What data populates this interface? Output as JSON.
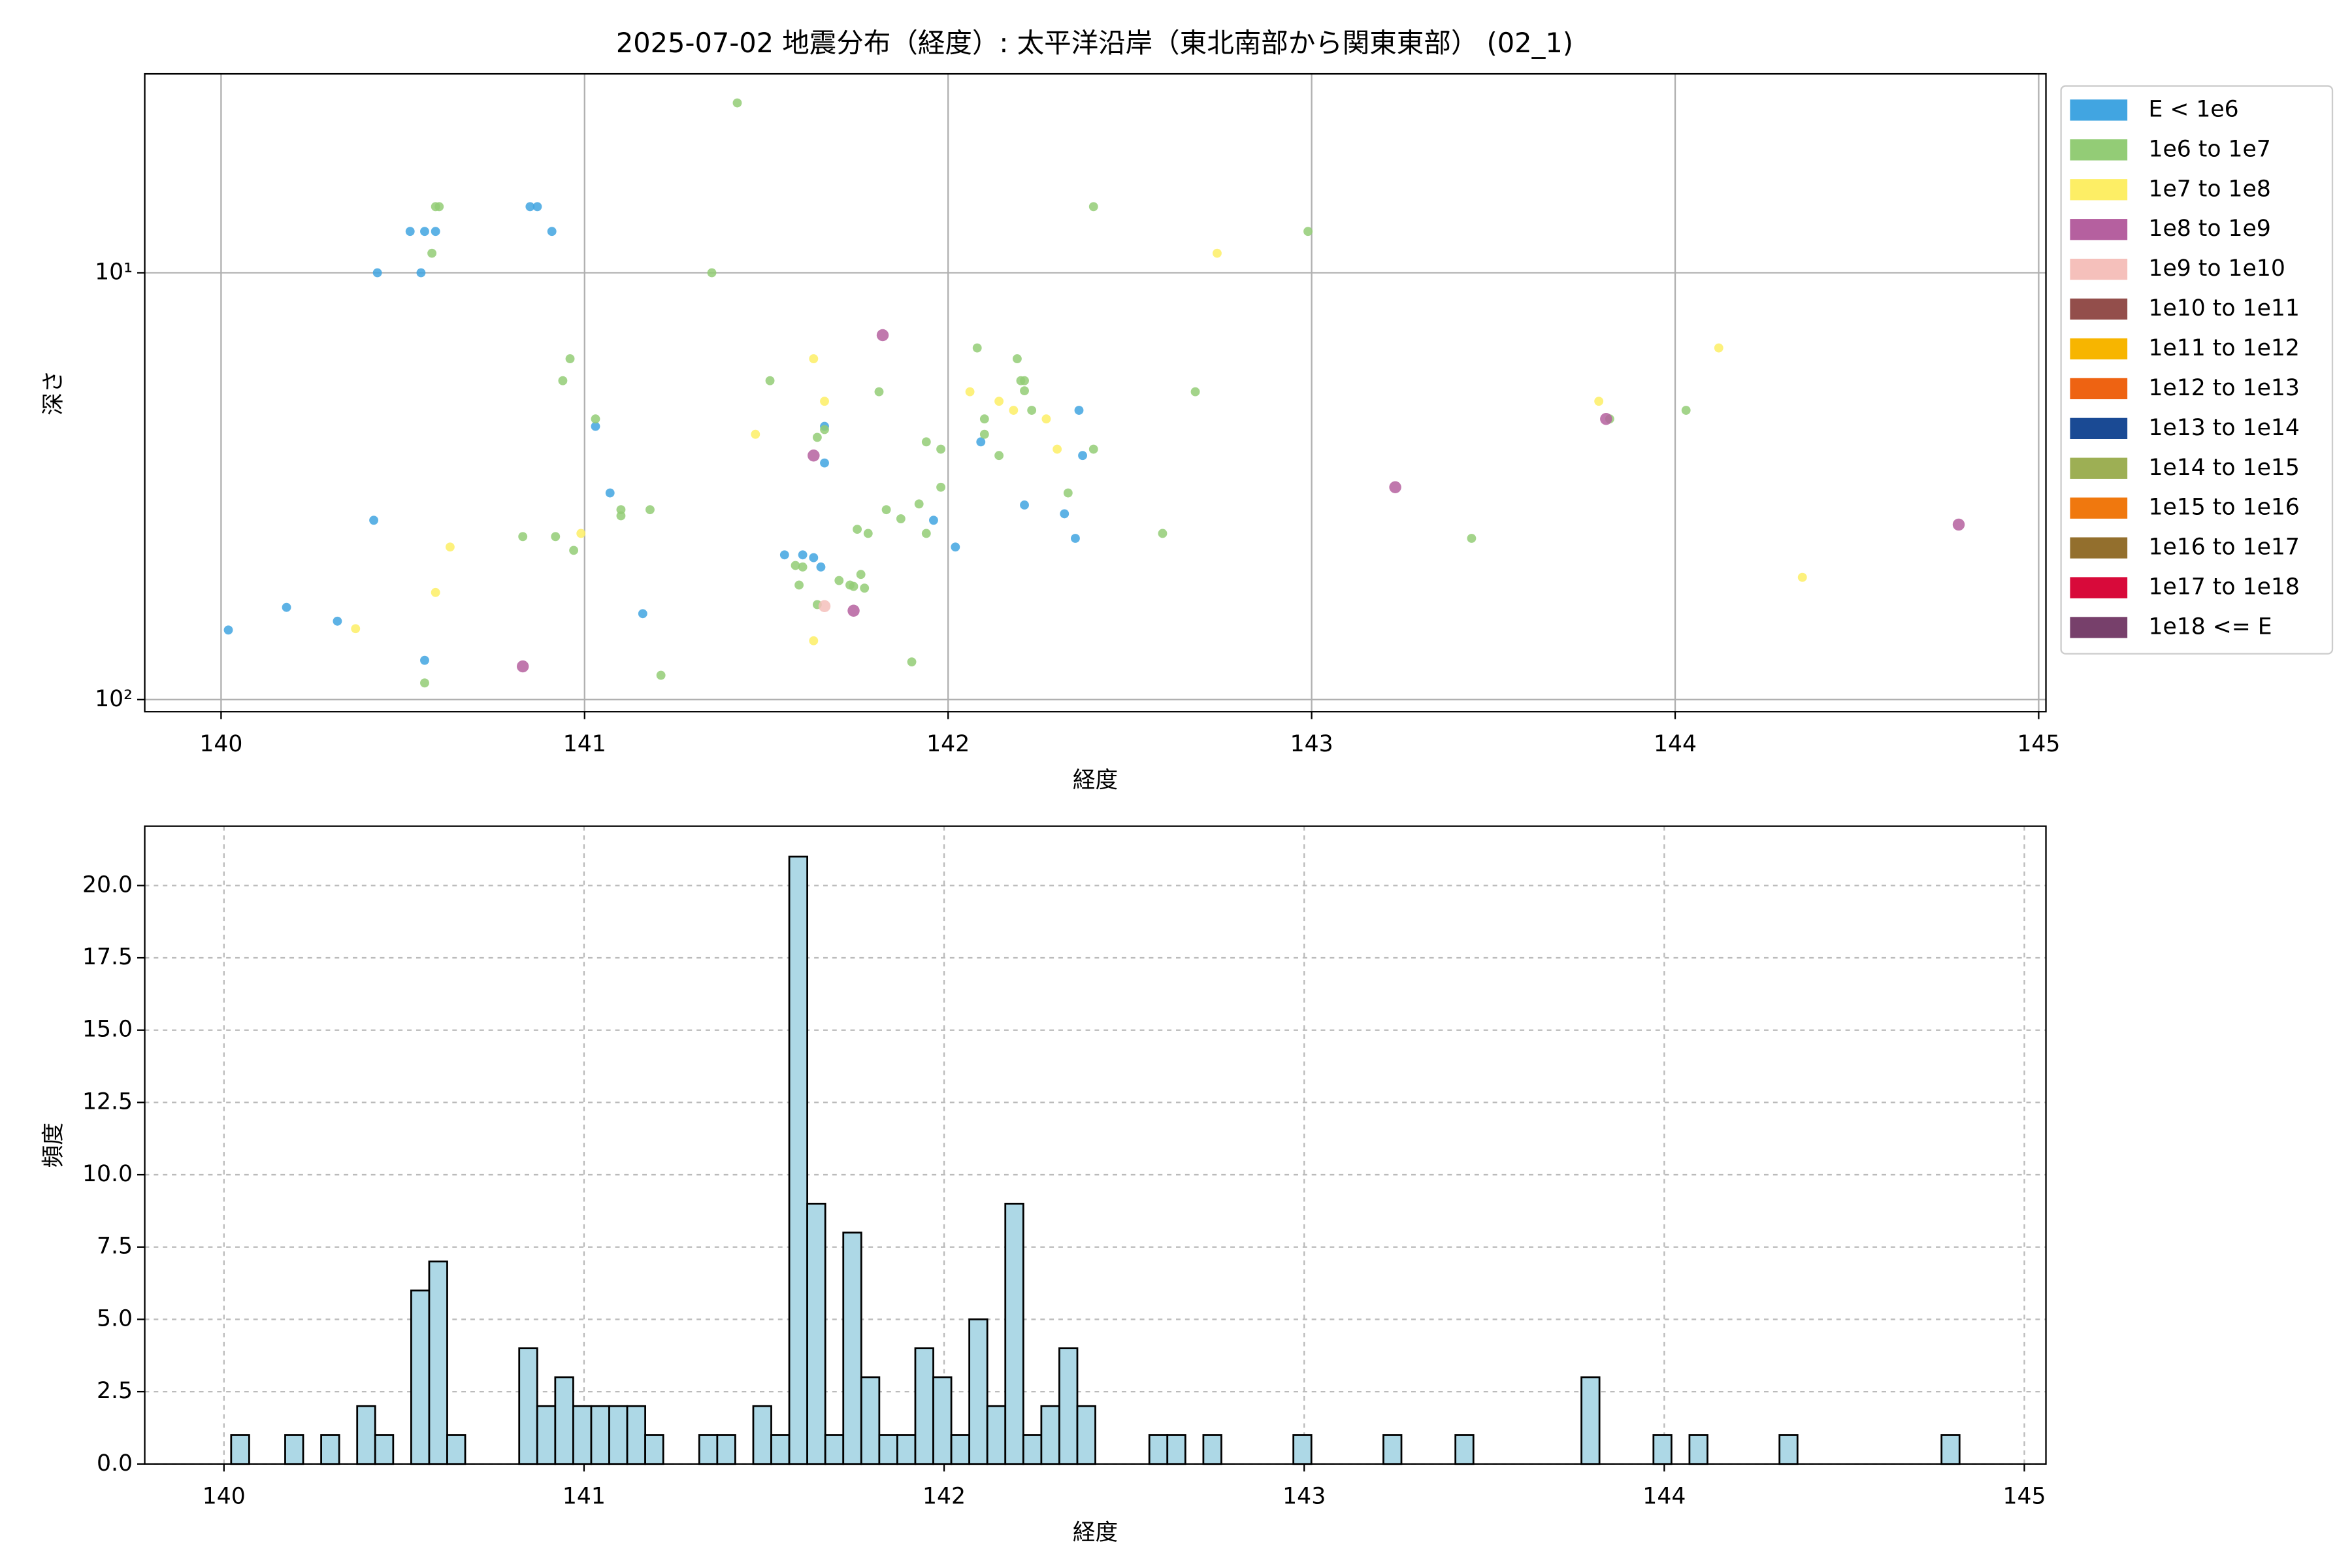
{
  "chart_data": [
    {
      "type": "scatter",
      "title": "2025-07-02 地震分布（経度）: 太平洋沿岸（東北南部から関東東部） (02_1)",
      "xlabel": "経度",
      "ylabel": "深さ",
      "xlim": [
        139.79,
        145.02
      ],
      "xticks": [
        140,
        141,
        142,
        143,
        144,
        145
      ],
      "ylim": [
        106.7,
        3.42
      ],
      "yscale": "log",
      "yticks": [
        {
          "value": 10,
          "label": "10¹"
        },
        {
          "value": 100,
          "label": "10²"
        }
      ],
      "grid": "solid",
      "series": [
        {
          "name": "E < 1e6",
          "color": "#41a5e1",
          "x": [
            140.02,
            140.18,
            140.32,
            140.42,
            140.43,
            140.55,
            140.52,
            140.56,
            140.59,
            140.56,
            140.85,
            140.87,
            140.91,
            141.03,
            141.07,
            141.16,
            141.55,
            141.6,
            141.63,
            141.65,
            141.66,
            141.66,
            141.96,
            142.02,
            142.09,
            142.21,
            142.32,
            142.35,
            142.36,
            142.37
          ],
          "values": [
            68.7,
            60.8,
            65.5,
            38.0,
            10,
            10,
            8.0,
            8.0,
            8.0,
            80.9,
            7.0,
            7.0,
            8.0,
            22.9,
            32.8,
            62.9,
            45.8,
            45.8,
            46.5,
            48.9,
            22.9,
            27.9,
            38.0,
            43.9,
            24.9,
            35.0,
            36.7,
            41.9,
            21.0,
            26.8
          ]
        },
        {
          "name": "1e6 to 1e7",
          "color": "#93cc76",
          "x": [
            141.42,
            140.6,
            140.59,
            140.58,
            141.35,
            142.4,
            142.99,
            140.96,
            140.94,
            141.03,
            141.1,
            141.1,
            141.18,
            140.83,
            140.92,
            140.97,
            141.51,
            141.59,
            141.6,
            141.58,
            141.64,
            141.66,
            141.64,
            141.7,
            141.73,
            141.74,
            141.76,
            141.75,
            141.78,
            141.81,
            141.83,
            141.87,
            141.92,
            141.94,
            141.94,
            141.98,
            141.98,
            141.9,
            142.08,
            142.1,
            142.1,
            142.14,
            142.19,
            142.2,
            142.21,
            142.21,
            142.23,
            142.33,
            142.4,
            142.68,
            142.59,
            143.44,
            143.82,
            144.03,
            141.21,
            140.56,
            141.77
          ],
          "values": [
            4.0,
            7.0,
            7.0,
            9.0,
            10,
            7.0,
            8.0,
            15.9,
            17.9,
            22.0,
            35.9,
            37.1,
            35.9,
            41.5,
            41.5,
            44.7,
            17.9,
            53.9,
            48.9,
            48.5,
            59.9,
            23.3,
            24.3,
            52.6,
            53.9,
            54.3,
            50.9,
            39.9,
            40.8,
            19.0,
            35.9,
            37.7,
            34.8,
            40.8,
            24.9,
            25.9,
            31.8,
            81.6,
            15.0,
            22.0,
            23.9,
            26.8,
            15.9,
            17.9,
            17.9,
            18.9,
            21.0,
            32.8,
            25.9,
            19.0,
            40.8,
            41.9,
            22.0,
            21.0,
            87.7,
            91.4,
            54.8
          ]
        },
        {
          "name": "1e7 to 1e8",
          "color": "#fdee65",
          "x": [
            140.37,
            140.59,
            140.63,
            140.99,
            141.47,
            141.63,
            141.66,
            141.63,
            142.06,
            142.14,
            142.18,
            142.27,
            142.3,
            142.74,
            143.79,
            144.12,
            144.35
          ],
          "values": [
            68.2,
            56.1,
            43.9,
            40.8,
            23.9,
            15.9,
            20.0,
            72.8,
            19.0,
            20.0,
            21.0,
            22.0,
            25.9,
            9.0,
            20.0,
            15.0,
            51.7
          ]
        },
        {
          "name": "1e8 to 1e9",
          "color": "#b5609f",
          "x": [
            141.82,
            141.63,
            141.74,
            140.83,
            143.81,
            143.23,
            144.78
          ],
          "values": [
            14.0,
            26.8,
            61.9,
            83.6,
            22.0,
            31.8,
            38.9
          ]
        },
        {
          "name": "1e9 to 1e10",
          "color": "#f5c0bb",
          "x": [
            141.66
          ],
          "values": [
            60.4
          ]
        },
        {
          "name": "1e10 to 1e11",
          "color": "#934e4b",
          "x": [],
          "values": []
        },
        {
          "name": "1e11 to 1e12",
          "color": "#f7b500",
          "x": [],
          "values": []
        },
        {
          "name": "1e12 to 1e13",
          "color": "#ee6312",
          "x": [],
          "values": []
        },
        {
          "name": "1e13 to 1e14",
          "color": "#1a4a94",
          "x": [],
          "values": []
        },
        {
          "name": "1e14 to 1e15",
          "color": "#9daf54",
          "x": [],
          "values": []
        },
        {
          "name": "1e15 to 1e16",
          "color": "#f0780e",
          "x": [],
          "values": []
        },
        {
          "name": "1e16 to 1e17",
          "color": "#936f2d",
          "x": [],
          "values": []
        },
        {
          "name": "1e17 to 1e18",
          "color": "#d80a3a",
          "x": [],
          "values": []
        },
        {
          "name": "1e18 <= E",
          "color": "#77406b",
          "x": [],
          "values": []
        }
      ]
    },
    {
      "type": "histogram",
      "xlabel": "経度",
      "ylabel": "頻度",
      "color": "#add8e6",
      "edgecolor": "#000000",
      "xlim": [
        139.78,
        145.06
      ],
      "xticks": [
        140,
        141,
        142,
        143,
        144,
        145
      ],
      "ylim": [
        0,
        22.05
      ],
      "yticks": [
        {
          "value": 0,
          "label": "0.0"
        },
        {
          "value": 2.5,
          "label": "2.5"
        },
        {
          "value": 5,
          "label": "5.0"
        },
        {
          "value": 7.5,
          "label": "7.5"
        },
        {
          "value": 10,
          "label": "10.0"
        },
        {
          "value": 12.5,
          "label": "12.5"
        },
        {
          "value": 15,
          "label": "15.0"
        },
        {
          "value": 17.5,
          "label": "17.5"
        },
        {
          "value": 20,
          "label": "20.0"
        }
      ],
      "grid": "dashed",
      "bins": [
        140.02,
        140.07,
        140.12,
        140.17,
        140.22,
        140.27,
        140.32,
        140.37,
        140.42,
        140.47,
        140.52,
        140.57,
        140.62,
        140.67,
        140.72,
        140.77,
        140.82,
        140.87,
        140.92,
        140.97,
        141.02,
        141.07,
        141.12,
        141.17,
        141.22,
        141.27,
        141.32,
        141.37,
        141.42,
        141.47,
        141.52,
        141.57,
        141.62,
        141.67,
        141.72,
        141.77,
        141.82,
        141.87,
        141.92,
        141.97,
        142.02,
        142.07,
        142.12,
        142.17,
        142.22,
        142.27,
        142.32,
        142.37,
        142.42,
        142.47,
        142.52,
        142.57,
        142.62,
        142.67,
        142.72,
        142.77,
        142.82,
        142.87,
        142.92,
        142.97,
        143.02,
        143.07,
        143.12,
        143.17,
        143.22,
        143.27,
        143.32,
        143.37,
        143.42,
        143.47,
        143.52,
        143.57,
        143.62,
        143.67,
        143.72,
        143.77,
        143.82,
        143.87,
        143.92,
        143.97,
        144.02,
        144.07,
        144.12,
        144.17,
        144.22,
        144.27,
        144.32,
        144.37,
        144.42,
        144.47,
        144.52,
        144.57,
        144.62,
        144.67,
        144.72,
        144.77,
        144.82
      ],
      "values": [
        1,
        0,
        0,
        1,
        0,
        1,
        0,
        2,
        1,
        0,
        6,
        7,
        1,
        0,
        0,
        0,
        4,
        2,
        3,
        2,
        2,
        2,
        2,
        1,
        0,
        0,
        1,
        1,
        0,
        2,
        1,
        21,
        9,
        1,
        8,
        3,
        1,
        1,
        4,
        3,
        1,
        5,
        2,
        9,
        1,
        2,
        4,
        2,
        0,
        0,
        0,
        1,
        1,
        0,
        1,
        0,
        0,
        0,
        0,
        1,
        0,
        0,
        0,
        0,
        1,
        0,
        0,
        0,
        1,
        0,
        0,
        0,
        0,
        0,
        0,
        3,
        0,
        0,
        0,
        1,
        0,
        1,
        0,
        0,
        0,
        0,
        1,
        0,
        0,
        0,
        0,
        0,
        0,
        0,
        0,
        1
      ]
    }
  ]
}
